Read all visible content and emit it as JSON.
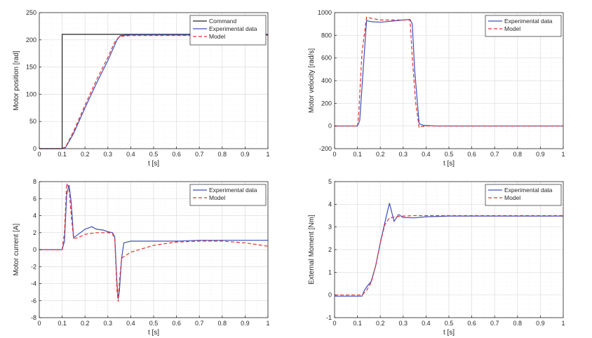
{
  "chart_data": [
    {
      "type": "line",
      "xlabel": "t [s]",
      "ylabel": "Motor position [rad]",
      "xlim": [
        0,
        1
      ],
      "ylim": [
        0,
        250
      ],
      "xticks": [
        0,
        0.1,
        0.2,
        0.3,
        0.4,
        0.5,
        0.6,
        0.7,
        0.8,
        0.9,
        1
      ],
      "yticks": [
        0,
        50,
        100,
        150,
        200,
        250
      ],
      "xtick_labels": [
        "0",
        "0.1",
        "0.2",
        "0.3",
        "0.4",
        "0.5",
        "0.6",
        "0.7",
        "0.8",
        "0.9",
        "1"
      ],
      "ytick_labels": [
        "0",
        "50",
        "100",
        "150",
        "200",
        "250"
      ],
      "grid": true,
      "legend": "top-right",
      "series": [
        {
          "name": "Command",
          "color": "#222222",
          "style": "solid",
          "x": [
            0,
            0.1,
            0.1,
            1
          ],
          "y": [
            0,
            0,
            210,
            210
          ]
        },
        {
          "name": "Experimental data",
          "color": "#3c4fbf",
          "style": "solid",
          "x": [
            0,
            0.1,
            0.115,
            0.15,
            0.2,
            0.25,
            0.3,
            0.34,
            0.355,
            0.4,
            1
          ],
          "y": [
            0,
            0,
            2,
            28,
            75,
            120,
            162,
            200,
            208,
            209,
            209
          ]
        },
        {
          "name": "Model",
          "color": "#e33030",
          "style": "dashed",
          "x": [
            0,
            0.095,
            0.115,
            0.15,
            0.2,
            0.25,
            0.3,
            0.33,
            0.35,
            0.4,
            1
          ],
          "y": [
            0,
            0,
            3,
            32,
            80,
            126,
            168,
            196,
            206,
            208,
            208
          ]
        }
      ]
    },
    {
      "type": "line",
      "xlabel": "t [s]",
      "ylabel": "Motor velocity [rad/s]",
      "xlim": [
        0,
        1
      ],
      "ylim": [
        -200,
        1000
      ],
      "xticks": [
        0,
        0.1,
        0.2,
        0.3,
        0.4,
        0.5,
        0.6,
        0.7,
        0.8,
        0.9,
        1
      ],
      "yticks": [
        -200,
        0,
        200,
        400,
        600,
        800,
        1000
      ],
      "xtick_labels": [
        "0",
        "0.1",
        "0.2",
        "0.3",
        "0.4",
        "0.5",
        "0.6",
        "0.7",
        "0.8",
        "0.9",
        "1"
      ],
      "ytick_labels": [
        "-200",
        "0",
        "200",
        "400",
        "600",
        "800",
        "1000"
      ],
      "grid": true,
      "legend": "top-right",
      "series": [
        {
          "name": "Experimental data",
          "color": "#3c4fbf",
          "style": "solid",
          "x": [
            0,
            0.1,
            0.11,
            0.125,
            0.14,
            0.16,
            0.2,
            0.25,
            0.3,
            0.33,
            0.34,
            0.35,
            0.37,
            0.39,
            0.45,
            1
          ],
          "y": [
            0,
            0,
            50,
            500,
            930,
            920,
            915,
            925,
            935,
            940,
            900,
            500,
            20,
            5,
            0,
            0
          ]
        },
        {
          "name": "Model",
          "color": "#e33030",
          "style": "dashed",
          "x": [
            0,
            0.1,
            0.105,
            0.12,
            0.14,
            0.16,
            0.2,
            0.25,
            0.3,
            0.33,
            0.34,
            0.355,
            0.37,
            0.38,
            0.4,
            1
          ],
          "y": [
            0,
            0,
            80,
            650,
            960,
            950,
            935,
            935,
            935,
            935,
            600,
            200,
            -15,
            -5,
            0,
            0
          ]
        }
      ]
    },
    {
      "type": "line",
      "xlabel": "t [s]",
      "ylabel": "Motor current [A]",
      "xlim": [
        0,
        1
      ],
      "ylim": [
        -8,
        8
      ],
      "xticks": [
        0,
        0.1,
        0.2,
        0.3,
        0.4,
        0.5,
        0.6,
        0.7,
        0.8,
        0.9,
        1
      ],
      "yticks": [
        -8,
        -6,
        -4,
        -2,
        0,
        2,
        4,
        6,
        8
      ],
      "xtick_labels": [
        "0",
        "0.1",
        "0.2",
        "0.3",
        "0.4",
        "0.5",
        "0.6",
        "0.7",
        "0.8",
        "0.9",
        "1"
      ],
      "ytick_labels": [
        "-8",
        "-6",
        "-4",
        "-2",
        "0",
        "2",
        "4",
        "6",
        "8"
      ],
      "grid": true,
      "legend": "top-right",
      "series": [
        {
          "name": "Experimental data",
          "color": "#3c4fbf",
          "style": "solid",
          "x": [
            0,
            0.1,
            0.11,
            0.12,
            0.13,
            0.14,
            0.15,
            0.17,
            0.2,
            0.23,
            0.25,
            0.28,
            0.3,
            0.32,
            0.33,
            0.34,
            0.345,
            0.35,
            0.36,
            0.37,
            0.4,
            0.5,
            0.6,
            0.7,
            0.8,
            0.9,
            1
          ],
          "y": [
            0,
            0,
            1,
            6.5,
            7.6,
            5.5,
            1.4,
            1.8,
            2.4,
            2.7,
            2.4,
            2.3,
            2.1,
            2.0,
            1.5,
            -4.0,
            -5.8,
            -5.0,
            -1.0,
            0.8,
            1.0,
            1.0,
            1.0,
            1.1,
            1.1,
            1.1,
            1.1
          ]
        },
        {
          "name": "Model",
          "color": "#e33030",
          "style": "dashed",
          "x": [
            0,
            0.1,
            0.11,
            0.12,
            0.13,
            0.14,
            0.15,
            0.17,
            0.2,
            0.25,
            0.3,
            0.32,
            0.33,
            0.34,
            0.345,
            0.35,
            0.36,
            0.4,
            0.5,
            0.6,
            0.7,
            0.8,
            0.9,
            1
          ],
          "y": [
            0,
            0,
            2,
            7.8,
            7.2,
            4.0,
            1.3,
            1.4,
            1.8,
            2.0,
            2.0,
            1.9,
            1.2,
            -4.8,
            -6.1,
            -4.0,
            -1.0,
            -0.3,
            0.5,
            0.9,
            1.0,
            1.0,
            0.8,
            0.4
          ]
        }
      ]
    },
    {
      "type": "line",
      "xlabel": "t [s]",
      "ylabel": "External Moment [Nm]",
      "xlim": [
        0,
        1
      ],
      "ylim": [
        -1,
        5
      ],
      "xticks": [
        0,
        0.1,
        0.2,
        0.3,
        0.4,
        0.5,
        0.6,
        0.7,
        0.8,
        0.9,
        1
      ],
      "yticks": [
        -1,
        0,
        1,
        2,
        3,
        4,
        5
      ],
      "xtick_labels": [
        "0",
        "0.1",
        "0.2",
        "0.3",
        "0.4",
        "0.5",
        "0.6",
        "0.7",
        "0.8",
        "0.9",
        "1"
      ],
      "ytick_labels": [
        "-1",
        "0",
        "1",
        "2",
        "3",
        "4",
        "5"
      ],
      "grid": true,
      "legend": "top-right",
      "series": [
        {
          "name": "Experimental data",
          "color": "#3c4fbf",
          "style": "solid",
          "x": [
            0,
            0.12,
            0.13,
            0.14,
            0.16,
            0.18,
            0.2,
            0.22,
            0.24,
            0.26,
            0.28,
            0.3,
            0.35,
            0.4,
            0.5,
            0.6,
            0.7,
            0.8,
            0.9,
            1
          ],
          "y": [
            -0.05,
            -0.05,
            0.2,
            0.35,
            0.6,
            1.3,
            2.3,
            3.2,
            4.05,
            3.25,
            3.55,
            3.42,
            3.4,
            3.45,
            3.48,
            3.48,
            3.48,
            3.48,
            3.48,
            3.48
          ]
        },
        {
          "name": "Model",
          "color": "#e33030",
          "style": "dashed",
          "x": [
            0,
            0.12,
            0.14,
            0.16,
            0.18,
            0.2,
            0.22,
            0.24,
            0.27,
            0.3,
            0.35,
            0.4,
            0.5,
            0.6,
            0.7,
            0.8,
            0.9,
            1
          ],
          "y": [
            0,
            0,
            0.2,
            0.55,
            1.3,
            2.3,
            3.1,
            3.4,
            3.45,
            3.48,
            3.5,
            3.5,
            3.5,
            3.5,
            3.5,
            3.5,
            3.5,
            3.5
          ]
        }
      ]
    }
  ]
}
